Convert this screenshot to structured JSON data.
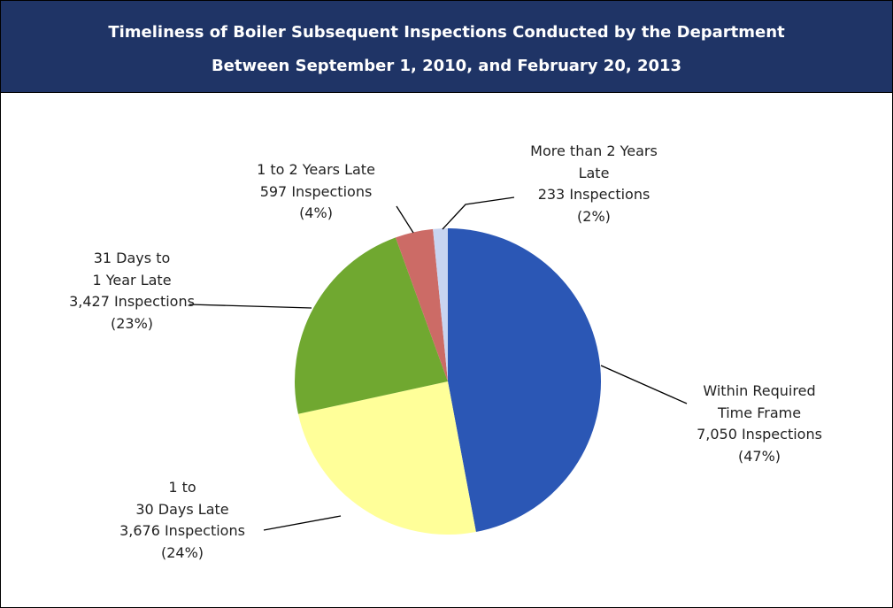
{
  "chart_data": {
    "type": "pie",
    "title": "Timeliness of Boiler Subsequent Inspections Conducted by the Department",
    "subtitle": "Between September 1, 2010, and February 20, 2013",
    "categories": [
      "Within Required\nTime Frame",
      "1 to\n30 Days Late",
      "31 Days to\n1 Year Late",
      "1  to 2 Years Late",
      "More than 2 Years\nLate"
    ],
    "values": [
      7050,
      3676,
      3427,
      597,
      233
    ],
    "value_labels": [
      "7,050 Inspections",
      "3,676 Inspections",
      "3,427 Inspections",
      "597 Inspections",
      "233 Inspections"
    ],
    "percent_labels": [
      "(47%)",
      "(24%)",
      "(23%)",
      "(4%)",
      "(2%)"
    ],
    "colors": [
      "#2b57b5",
      "#ffff99",
      "#70a830",
      "#cc6b66",
      "#c8d4f0"
    ]
  }
}
